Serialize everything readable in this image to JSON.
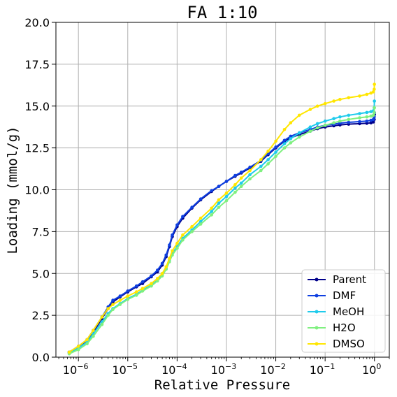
{
  "chart_data": {
    "type": "line",
    "title": "FA 1:10",
    "xlabel": "Relative Pressure",
    "ylabel": "Loading (mmol/g)",
    "xscale": "log",
    "xlim": [
      3.5e-07,
      2.0
    ],
    "ylim": [
      0,
      20
    ],
    "grid": true,
    "legend_position": "bottom-right",
    "xticks": [
      {
        "value": 1e-06,
        "base": "10",
        "exp": "−6"
      },
      {
        "value": 1e-05,
        "base": "10",
        "exp": "−5"
      },
      {
        "value": 0.0001,
        "base": "10",
        "exp": "−4"
      },
      {
        "value": 0.001,
        "base": "10",
        "exp": "−3"
      },
      {
        "value": 0.01,
        "base": "10",
        "exp": "−2"
      },
      {
        "value": 0.1,
        "base": "10",
        "exp": "−1"
      },
      {
        "value": 1,
        "base": "10",
        "exp": "0"
      }
    ],
    "yticks": [
      {
        "value": 0,
        "label": "0.0"
      },
      {
        "value": 2.5,
        "label": "2.5"
      },
      {
        "value": 5,
        "label": "5.0"
      },
      {
        "value": 7.5,
        "label": "7.5"
      },
      {
        "value": 10,
        "label": "10.0"
      },
      {
        "value": 12.5,
        "label": "12.5"
      },
      {
        "value": 15,
        "label": "15.0"
      },
      {
        "value": 17.5,
        "label": "17.5"
      },
      {
        "value": 20,
        "label": "20.0"
      }
    ],
    "series": [
      {
        "name": "Parent",
        "color": "#00008b",
        "x": [
          6.5e-07,
          1e-06,
          1.5e-06,
          2e-06,
          3e-06,
          4e-06,
          5e-06,
          7e-06,
          1e-05,
          1.5e-05,
          2e-05,
          3e-05,
          4e-05,
          5e-05,
          6e-05,
          7e-05,
          8e-05,
          0.0001,
          0.00013,
          0.0002,
          0.0003,
          0.0005,
          0.0007,
          0.001,
          0.0015,
          0.002,
          0.003,
          0.005,
          0.007,
          0.01,
          0.015,
          0.02,
          0.03,
          0.05,
          0.07,
          0.1,
          0.15,
          0.2,
          0.3,
          0.5,
          0.7,
          0.85,
          0.95,
          0.99,
          1.0
        ],
        "y": [
          0.3,
          0.6,
          1.0,
          1.5,
          2.3,
          2.9,
          3.3,
          3.6,
          3.9,
          4.2,
          4.4,
          4.8,
          5.1,
          5.5,
          6.0,
          6.6,
          7.2,
          7.8,
          8.3,
          8.9,
          9.4,
          9.9,
          10.2,
          10.5,
          10.8,
          11.0,
          11.3,
          11.7,
          12.1,
          12.5,
          12.9,
          13.1,
          13.3,
          13.5,
          13.65,
          13.75,
          13.82,
          13.87,
          13.92,
          13.95,
          13.97,
          14.0,
          14.05,
          14.2,
          14.5
        ]
      },
      {
        "name": "DMF",
        "color": "#0e3fe0",
        "x": [
          6.5e-07,
          1e-06,
          1.5e-06,
          2e-06,
          3e-06,
          4e-06,
          5e-06,
          7e-06,
          1e-05,
          1.5e-05,
          2e-05,
          3e-05,
          4e-05,
          5e-05,
          6e-05,
          7e-05,
          8e-05,
          0.0001,
          0.00013,
          0.0002,
          0.0003,
          0.0005,
          0.0007,
          0.001,
          0.0015,
          0.002,
          0.003,
          0.005,
          0.007,
          0.01,
          0.015,
          0.02,
          0.03,
          0.05,
          0.07,
          0.1,
          0.15,
          0.2,
          0.3,
          0.5,
          0.7,
          0.85,
          0.95,
          0.99,
          1.0
        ],
        "y": [
          0.3,
          0.65,
          1.05,
          1.6,
          2.4,
          3.0,
          3.4,
          3.65,
          3.95,
          4.25,
          4.5,
          4.85,
          5.2,
          5.6,
          6.1,
          6.7,
          7.3,
          7.9,
          8.4,
          8.95,
          9.45,
          9.95,
          10.2,
          10.5,
          10.85,
          11.05,
          11.35,
          11.75,
          12.15,
          12.55,
          12.95,
          13.2,
          13.4,
          13.6,
          13.75,
          13.85,
          13.92,
          13.98,
          14.03,
          14.07,
          14.1,
          14.15,
          14.2,
          14.35,
          14.6
        ]
      },
      {
        "name": "MeOH",
        "color": "#1ecbec",
        "x": [
          6.5e-07,
          1e-06,
          1.5e-06,
          2e-06,
          3e-06,
          4e-06,
          5e-06,
          7e-06,
          1e-05,
          1.5e-05,
          2e-05,
          3e-05,
          4e-05,
          5e-05,
          6e-05,
          7e-05,
          8e-05,
          0.0001,
          0.00013,
          0.0002,
          0.0003,
          0.0005,
          0.0007,
          0.001,
          0.0015,
          0.002,
          0.003,
          0.005,
          0.007,
          0.01,
          0.015,
          0.02,
          0.03,
          0.05,
          0.07,
          0.1,
          0.15,
          0.2,
          0.3,
          0.5,
          0.7,
          0.85,
          0.95,
          0.99,
          1.0
        ],
        "y": [
          0.25,
          0.55,
          0.9,
          1.4,
          2.1,
          2.6,
          2.9,
          3.2,
          3.5,
          3.75,
          4.0,
          4.3,
          4.6,
          4.9,
          5.3,
          5.8,
          6.2,
          6.6,
          7.1,
          7.6,
          8.1,
          8.7,
          9.2,
          9.6,
          10.1,
          10.4,
          10.9,
          11.4,
          11.8,
          12.25,
          12.75,
          13.05,
          13.4,
          13.75,
          13.95,
          14.1,
          14.25,
          14.35,
          14.45,
          14.55,
          14.62,
          14.67,
          14.72,
          14.9,
          15.3
        ]
      },
      {
        "name": "H2O",
        "color": "#7ff07f",
        "x": [
          6.5e-07,
          1e-06,
          1.5e-06,
          2e-06,
          3e-06,
          4e-06,
          5e-06,
          7e-06,
          1e-05,
          1.5e-05,
          2e-05,
          3e-05,
          4e-05,
          5e-05,
          6e-05,
          7e-05,
          8e-05,
          0.0001,
          0.00013,
          0.0002,
          0.0003,
          0.0005,
          0.0007,
          0.001,
          0.0015,
          0.002,
          0.003,
          0.005,
          0.007,
          0.01,
          0.015,
          0.02,
          0.03,
          0.05,
          0.07,
          0.1,
          0.15,
          0.2,
          0.3,
          0.5,
          0.7,
          0.85,
          0.95,
          0.99,
          1.0
        ],
        "y": [
          0.2,
          0.45,
          0.8,
          1.25,
          1.95,
          2.5,
          2.85,
          3.15,
          3.45,
          3.7,
          3.95,
          4.25,
          4.55,
          4.85,
          5.25,
          5.7,
          6.1,
          6.5,
          7.0,
          7.5,
          7.95,
          8.5,
          8.95,
          9.35,
          9.85,
          10.2,
          10.65,
          11.15,
          11.55,
          12.0,
          12.5,
          12.8,
          13.15,
          13.5,
          13.7,
          13.85,
          14.0,
          14.1,
          14.2,
          14.3,
          14.35,
          14.4,
          14.45,
          14.6,
          14.9
        ]
      },
      {
        "name": "DMSO",
        "color": "#ffe600",
        "x": [
          6.5e-07,
          1e-06,
          1.5e-06,
          2e-06,
          3e-06,
          4e-06,
          5e-06,
          7e-06,
          1e-05,
          1.5e-05,
          2e-05,
          3e-05,
          4e-05,
          5e-05,
          6e-05,
          7e-05,
          8e-05,
          0.0001,
          0.00013,
          0.0002,
          0.0003,
          0.0005,
          0.0007,
          0.001,
          0.0015,
          0.002,
          0.003,
          0.005,
          0.007,
          0.01,
          0.015,
          0.02,
          0.03,
          0.05,
          0.07,
          0.1,
          0.15,
          0.2,
          0.3,
          0.5,
          0.7,
          0.85,
          0.95,
          0.99,
          1.0
        ],
        "y": [
          0.3,
          0.65,
          1.05,
          1.6,
          2.4,
          2.9,
          3.15,
          3.4,
          3.65,
          3.9,
          4.1,
          4.4,
          4.7,
          5.0,
          5.4,
          5.9,
          6.35,
          6.8,
          7.3,
          7.8,
          8.3,
          8.9,
          9.4,
          9.8,
          10.3,
          10.7,
          11.15,
          11.8,
          12.3,
          12.9,
          13.6,
          14.0,
          14.45,
          14.8,
          15.0,
          15.15,
          15.3,
          15.4,
          15.5,
          15.6,
          15.7,
          15.78,
          15.85,
          16.0,
          16.3
        ]
      }
    ]
  }
}
